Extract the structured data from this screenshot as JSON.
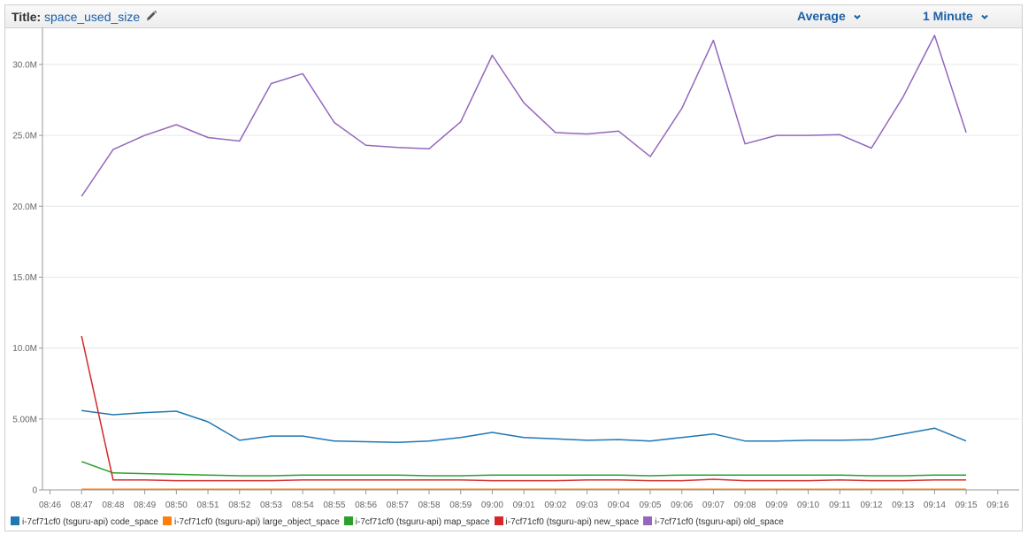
{
  "header": {
    "title_label": "Title:",
    "title_value": "space_used_size",
    "statistic": "Average",
    "period": "1 Minute"
  },
  "colors": {
    "accent": "#1a5fa8",
    "grid": "#e6e6e6",
    "axis": "#999999"
  },
  "icons": {
    "edit": "pencil-icon",
    "dropdown": "chevron-down-icon"
  },
  "chart_data": {
    "type": "line",
    "title": "space_used_size",
    "xlabel": "",
    "ylabel": "",
    "x": [
      "08:47",
      "08:48",
      "08:49",
      "08:50",
      "08:51",
      "08:52",
      "08:53",
      "08:54",
      "08:55",
      "08:56",
      "08:57",
      "08:58",
      "08:59",
      "09:00",
      "09:01",
      "09:02",
      "09:03",
      "09:04",
      "09:05",
      "09:06",
      "09:07",
      "09:08",
      "09:09",
      "09:10",
      "09:11",
      "09:12",
      "09:13",
      "09:14",
      "09:15"
    ],
    "x_ticks": [
      "08:46",
      "08:47",
      "08:48",
      "08:49",
      "08:50",
      "08:51",
      "08:52",
      "08:53",
      "08:54",
      "08:55",
      "08:56",
      "08:57",
      "08:58",
      "08:59",
      "09:00",
      "09:01",
      "09:02",
      "09:03",
      "09:04",
      "09:05",
      "09:06",
      "09:07",
      "09:08",
      "09:09",
      "09:10",
      "09:11",
      "09:12",
      "09:13",
      "09:14",
      "09:15",
      "09:16"
    ],
    "y_ticks": [
      "0",
      "5.00M",
      "10.0M",
      "15.0M",
      "20.0M",
      "25.0M",
      "30.0M"
    ],
    "y_tick_values": [
      0,
      5,
      10,
      15,
      20,
      25,
      30
    ],
    "ylim": [
      0,
      32.3
    ],
    "y_unit": "M",
    "grid": true,
    "legend_position": "bottom",
    "series": [
      {
        "name": "i-7cf71cf0 (tsguru-api) code_space",
        "color": "#1f77b4",
        "values": [
          5.6,
          5.3,
          5.45,
          5.55,
          4.8,
          3.5,
          3.8,
          3.8,
          3.45,
          3.4,
          3.35,
          3.45,
          3.7,
          4.05,
          3.7,
          3.6,
          3.5,
          3.55,
          3.45,
          3.7,
          3.95,
          3.45,
          3.45,
          3.5,
          3.5,
          3.55,
          3.95,
          4.35,
          3.45
        ]
      },
      {
        "name": "i-7cf71cf0 (tsguru-api) large_object_space",
        "color": "#ff7f0e",
        "values": [
          0.05,
          0.05,
          0.05,
          0.05,
          0.05,
          0.05,
          0.05,
          0.05,
          0.05,
          0.05,
          0.05,
          0.05,
          0.05,
          0.05,
          0.05,
          0.05,
          0.05,
          0.05,
          0.05,
          0.05,
          0.05,
          0.05,
          0.05,
          0.05,
          0.05,
          0.05,
          0.05,
          0.05,
          0.05
        ]
      },
      {
        "name": "i-7cf71cf0 (tsguru-api) map_space",
        "color": "#2ca02c",
        "values": [
          2.0,
          1.2,
          1.15,
          1.1,
          1.05,
          1.0,
          1.0,
          1.05,
          1.05,
          1.05,
          1.05,
          1.0,
          1.0,
          1.05,
          1.05,
          1.05,
          1.05,
          1.05,
          1.0,
          1.05,
          1.05,
          1.05,
          1.05,
          1.05,
          1.05,
          1.0,
          1.0,
          1.05,
          1.05
        ]
      },
      {
        "name": "i-7cf71cf0 (tsguru-api) new_space",
        "color": "#d62728",
        "values": [
          10.85,
          0.7,
          0.7,
          0.65,
          0.65,
          0.65,
          0.65,
          0.7,
          0.7,
          0.7,
          0.7,
          0.7,
          0.7,
          0.65,
          0.65,
          0.65,
          0.7,
          0.7,
          0.65,
          0.65,
          0.75,
          0.65,
          0.65,
          0.65,
          0.7,
          0.65,
          0.65,
          0.7,
          0.7
        ]
      },
      {
        "name": "i-7cf71cf0 (tsguru-api) old_space",
        "color": "#9467bd",
        "values": [
          20.7,
          24.0,
          25.0,
          25.75,
          24.85,
          24.6,
          28.65,
          29.35,
          25.9,
          24.3,
          24.15,
          24.05,
          25.95,
          30.65,
          27.3,
          25.2,
          25.1,
          25.3,
          23.5,
          26.9,
          31.7,
          24.4,
          25.0,
          25.0,
          25.05,
          24.1,
          27.7,
          32.05,
          25.2
        ]
      }
    ]
  }
}
